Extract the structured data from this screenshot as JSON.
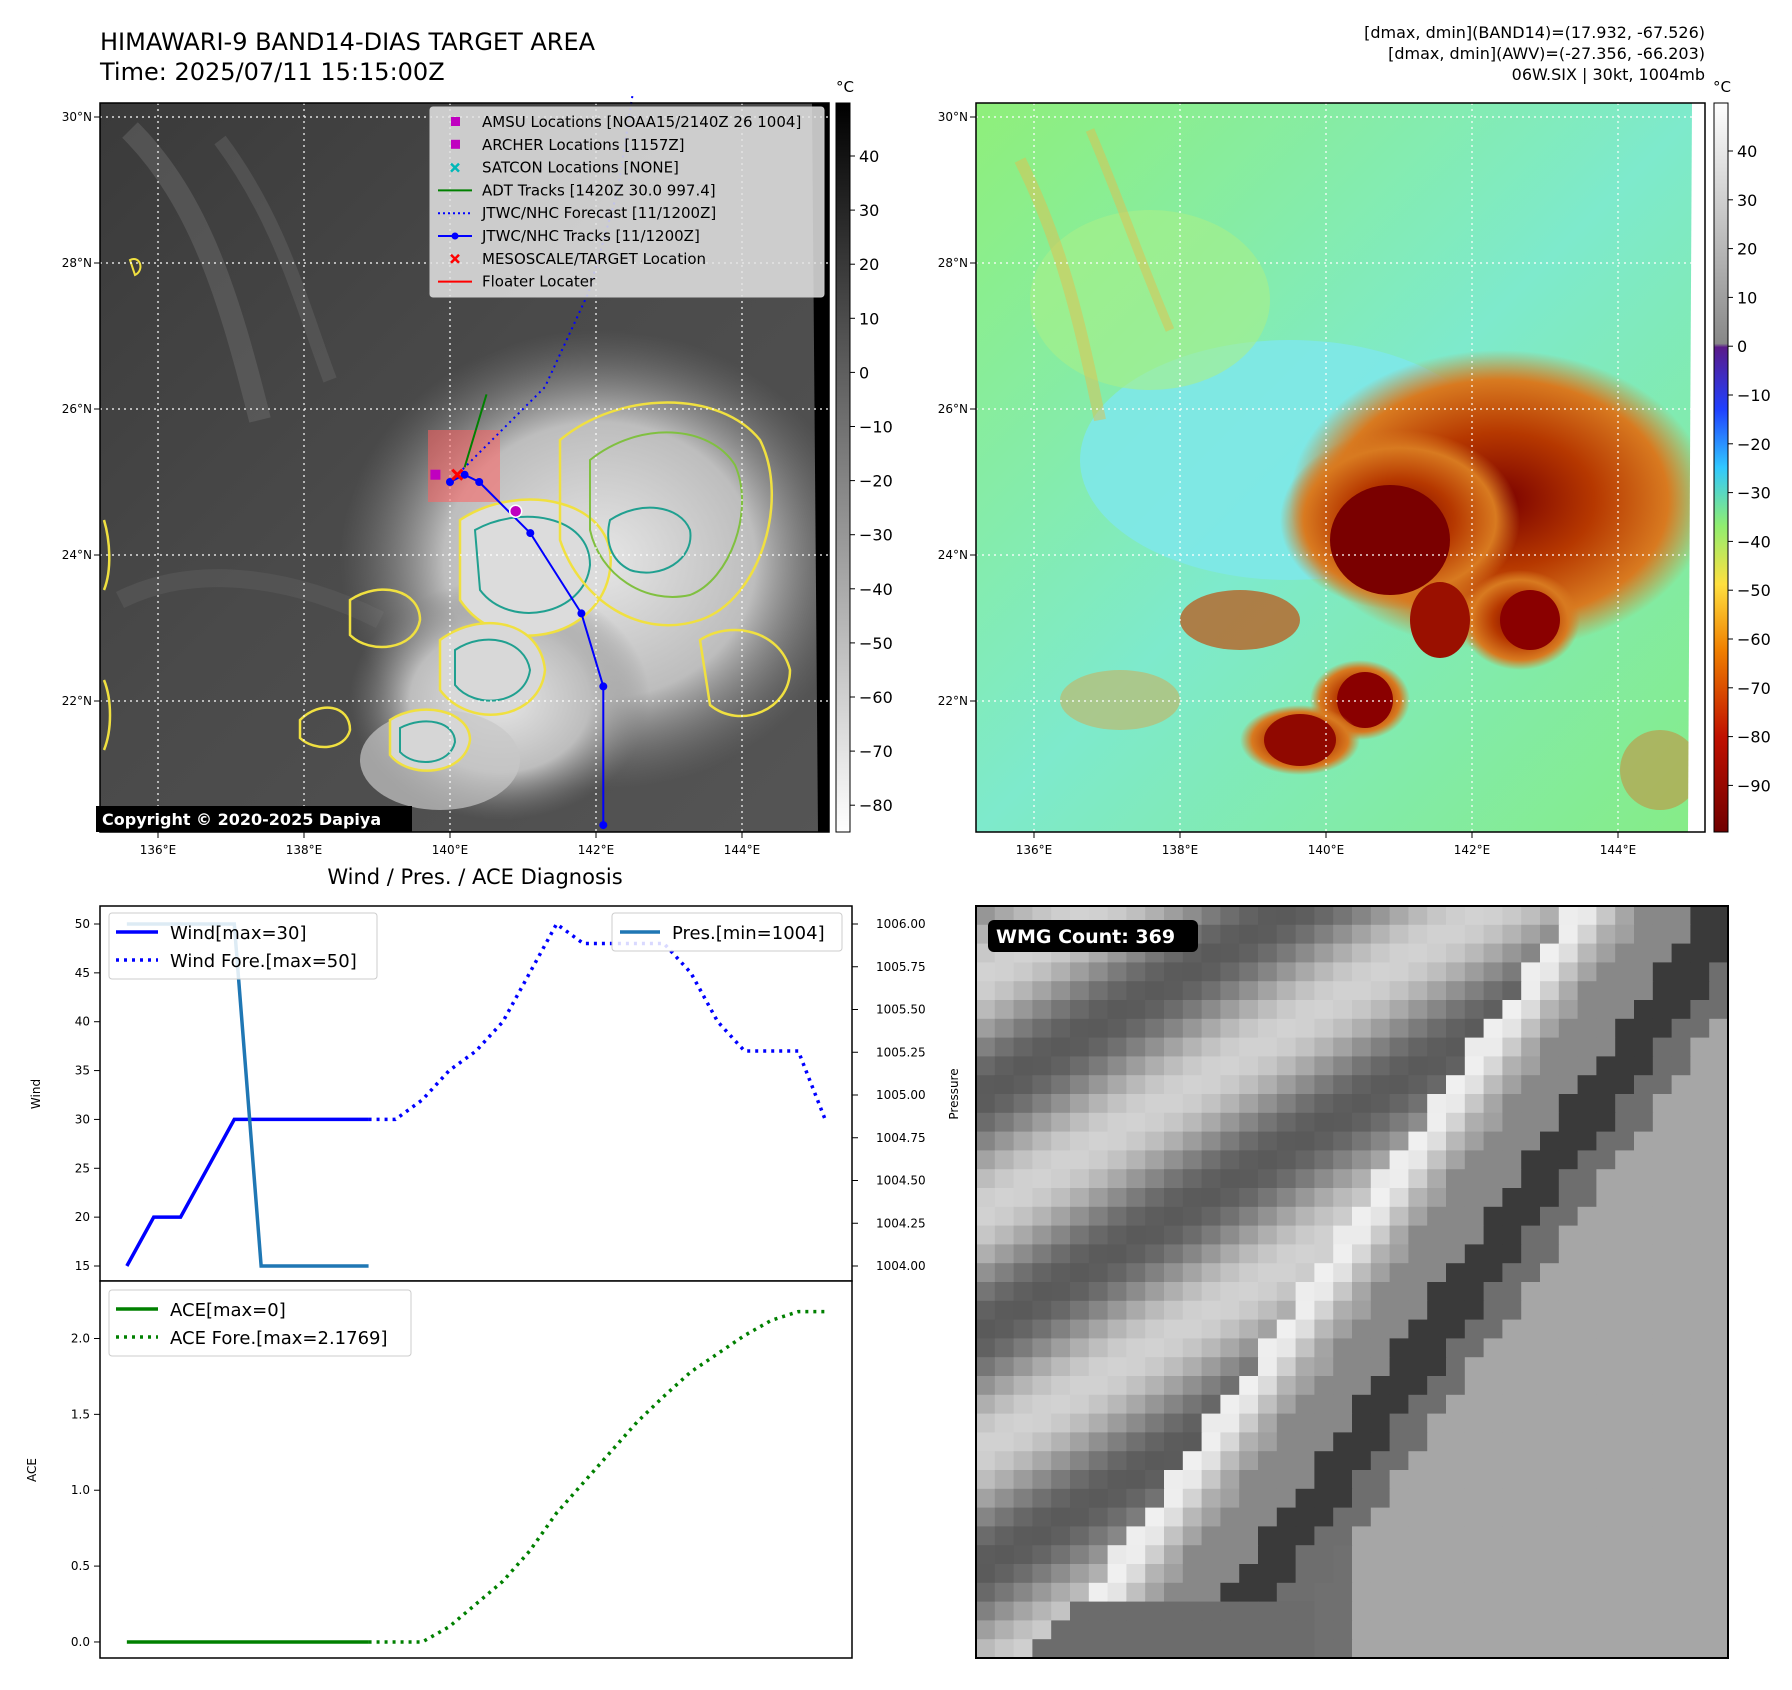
{
  "header": {
    "title_line1": "HIMAWARI-9 BAND14-DIAS TARGET AREA",
    "title_line2": "Time: 2025/07/11 15:15:00Z",
    "info_line1": "[dmax, dmin](BAND14)=(17.932, -67.526)",
    "info_line2": "[dmax, dmin](AWV)=(-27.356, -66.203)",
    "info_line3": "06W.SIX | 30kt, 1004mb"
  },
  "map_axes": {
    "x_ticks": [
      "136°E",
      "138°E",
      "140°E",
      "142°E",
      "144°E"
    ],
    "y_ticks": [
      "30°N",
      "28°N",
      "26°N",
      "24°N",
      "22°N"
    ],
    "colorbar_unit": "°C"
  },
  "ir_panel": {
    "colorbar_ticks": [
      "40",
      "30",
      "20",
      "10",
      "0",
      "−10",
      "−20",
      "−30",
      "−40",
      "−50",
      "−60",
      "−70",
      "−80"
    ],
    "copyright": "Copyright © 2020-2025 Dapiya",
    "legend": [
      {
        "label": "AMSU Locations [NOAA15/2140Z 26 1004]",
        "color": "#c000c0",
        "marker": "square"
      },
      {
        "label": "ARCHER Locations [1157Z]",
        "color": "#c000c0",
        "marker": "square"
      },
      {
        "label": "SATCON Locations [NONE]",
        "color": "#00b8b8",
        "marker": "x"
      },
      {
        "label": "ADT Tracks [1420Z 30.0 997.4]",
        "color": "#008000",
        "marker": "line"
      },
      {
        "label": "JTWC/NHC Forecast [11/1200Z]",
        "color": "#0000ff",
        "marker": "dotted"
      },
      {
        "label": "JTWC/NHC Tracks [11/1200Z]",
        "color": "#0000ff",
        "marker": "line-dot"
      },
      {
        "label": "MESOSCALE/TARGET Location",
        "color": "#ff0000",
        "marker": "x"
      },
      {
        "label": "Floater Locater",
        "color": "#ff0000",
        "marker": "line"
      }
    ],
    "best_track": [
      [
        140.0,
        25.0
      ],
      [
        140.2,
        25.1
      ],
      [
        140.4,
        25.0
      ],
      [
        141.1,
        24.3
      ],
      [
        141.8,
        23.2
      ],
      [
        142.1,
        22.2
      ],
      [
        142.1,
        20.3
      ]
    ],
    "forecast_track": [
      [
        140.0,
        25.0
      ],
      [
        140.6,
        25.6
      ],
      [
        141.3,
        26.3
      ],
      [
        141.9,
        27.6
      ],
      [
        142.3,
        29.0
      ],
      [
        142.5,
        30.3
      ]
    ],
    "adt_track": [
      [
        140.2,
        25.2
      ],
      [
        140.5,
        26.2
      ]
    ],
    "archer_location": [
      139.8,
      25.1
    ]
  },
  "awv_panel": {
    "colorbar_ticks": [
      "40",
      "30",
      "20",
      "10",
      "0",
      "−10",
      "−20",
      "−30",
      "−40",
      "−50",
      "−60",
      "−70",
      "−80",
      "−90"
    ]
  },
  "chart_data": [
    {
      "type": "line",
      "title": "Wind / Pres. / ACE Diagnosis",
      "ylabel": "Wind",
      "ylim": [
        15,
        50
      ],
      "yticks": [
        "50",
        "45",
        "40",
        "35",
        "30",
        "25",
        "20",
        "15"
      ],
      "series": [
        {
          "name": "Wind[max=30]",
          "color": "#0000ff",
          "style": "solid",
          "x": [
            0,
            1,
            2,
            3,
            4,
            5,
            6,
            7,
            8,
            9
          ],
          "values": [
            15,
            20,
            20,
            25,
            30,
            30,
            30,
            30,
            30,
            30
          ]
        },
        {
          "name": "Wind Fore.[max=50]",
          "color": "#0000ff",
          "style": "dotted",
          "x": [
            9,
            10,
            11,
            12,
            13,
            14,
            15,
            16,
            17,
            18,
            19,
            20,
            21,
            22,
            23,
            24,
            25,
            26
          ],
          "values": [
            30,
            30,
            32,
            35,
            37,
            40,
            45,
            50,
            48,
            48,
            48,
            48,
            45,
            40,
            37,
            37,
            37,
            30
          ]
        }
      ],
      "y2label": "Pressure",
      "y2lim": [
        1004.0,
        1006.0
      ],
      "y2ticks": [
        "1006.00",
        "1005.75",
        "1005.50",
        "1005.25",
        "1005.00",
        "1004.75",
        "1004.50",
        "1004.25",
        "1004.00"
      ],
      "series2": [
        {
          "name": "Pres.[min=1004]",
          "color": "#1f77b4",
          "style": "solid",
          "x": [
            0,
            1,
            2,
            3,
            4,
            5,
            6,
            7,
            8,
            9
          ],
          "values": [
            1006,
            1006,
            1006,
            1006,
            1006,
            1004,
            1004,
            1004,
            1004,
            1004
          ]
        }
      ],
      "x_range": [
        -1,
        27
      ]
    },
    {
      "type": "line",
      "ylabel": "ACE",
      "ylim": [
        0,
        2.2
      ],
      "yticks": [
        "2.0",
        "1.5",
        "1.0",
        "0.5",
        "0.0"
      ],
      "series": [
        {
          "name": "ACE[max=0]",
          "color": "#008000",
          "style": "solid",
          "x": [
            0,
            1,
            2,
            3,
            4,
            5,
            6,
            7,
            8,
            9
          ],
          "values": [
            0,
            0,
            0,
            0,
            0,
            0,
            0,
            0,
            0,
            0
          ]
        },
        {
          "name": "ACE Fore.[max=2.1769]",
          "color": "#008000",
          "style": "dotted",
          "x": [
            9,
            10,
            11,
            12,
            13,
            14,
            15,
            16,
            17,
            18,
            19,
            20,
            21,
            22,
            23,
            24,
            25,
            26
          ],
          "values": [
            0,
            0,
            0,
            0.1,
            0.25,
            0.4,
            0.6,
            0.85,
            1.05,
            1.25,
            1.45,
            1.62,
            1.78,
            1.9,
            2.02,
            2.12,
            2.1769,
            2.1769
          ]
        }
      ],
      "x_range": [
        -1,
        27
      ]
    }
  ],
  "wmg_panel": {
    "label": "WMG Count: 369"
  }
}
